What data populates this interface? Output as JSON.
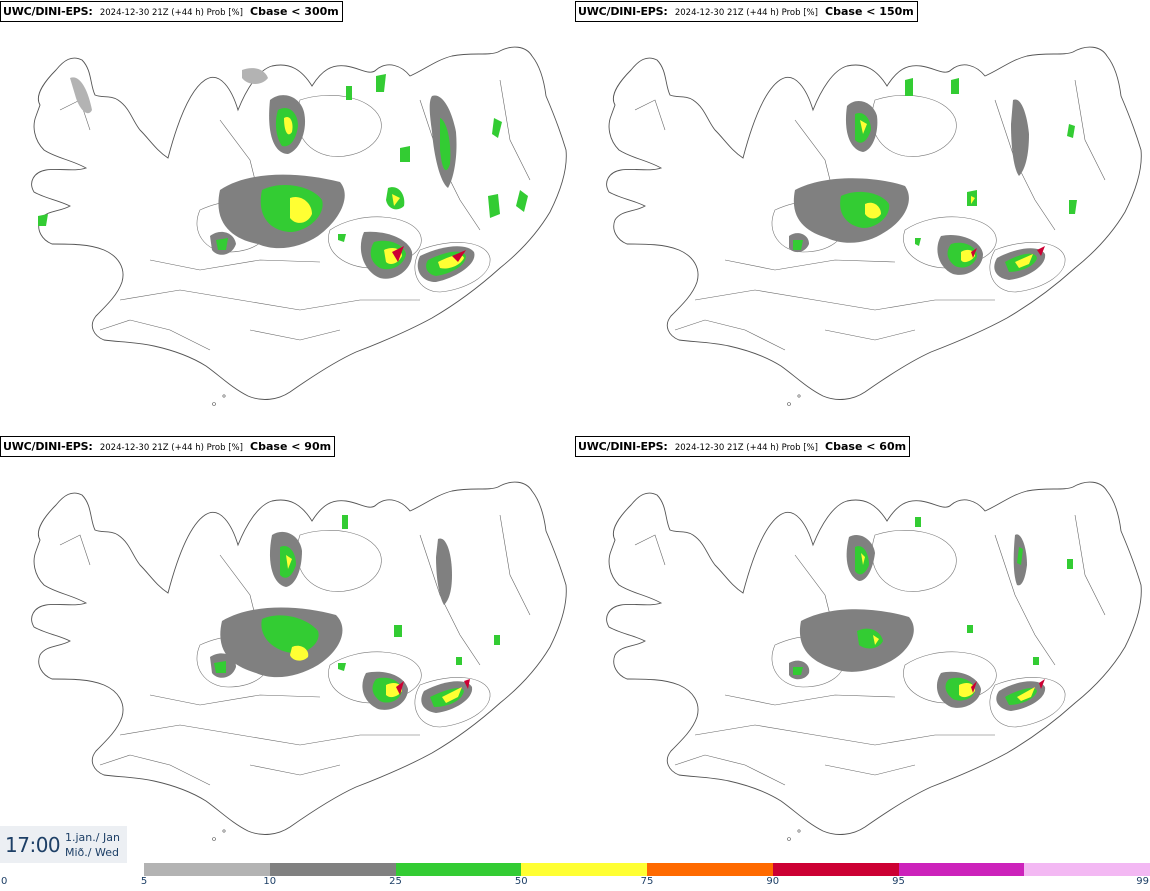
{
  "panels": [
    {
      "model": "UWC/DINI-EPS",
      "info": "2024-12-30 21Z (+44 h) Prob [%]",
      "threshold": "Cbase < 300m"
    },
    {
      "model": "UWC/DINI-EPS",
      "info": "2024-12-30 21Z (+44 h) Prob [%]",
      "threshold": "Cbase < 150m"
    },
    {
      "model": "UWC/DINI-EPS",
      "info": "2024-12-30 21Z (+44 h) Prob [%]",
      "threshold": "Cbase < 90m"
    },
    {
      "model": "UWC/DINI-EPS",
      "info": "2024-12-30 21Z (+44 h) Prob [%]",
      "threshold": "Cbase < 60m"
    }
  ],
  "time_box": {
    "time": "17:00",
    "date_line1": "1.jan./ Jan",
    "date_line2": "Mið./ Wed"
  },
  "colorbar": {
    "ticks": [
      "0",
      "5",
      "10",
      "25",
      "50",
      "75",
      "90",
      "95",
      "99"
    ],
    "colors": [
      "#b3b3b3",
      "#808080",
      "#33cc33",
      "#ffff33",
      "#ff6a00",
      "#cc0033",
      "#cc22bb",
      "#f3b8f3"
    ]
  },
  "legend_colors": {
    "light_gray": "#b3b3b3",
    "dark_gray": "#808080",
    "green": "#33cc33",
    "yellow": "#ffff33",
    "orange": "#ff6a00",
    "red": "#cc0033"
  }
}
